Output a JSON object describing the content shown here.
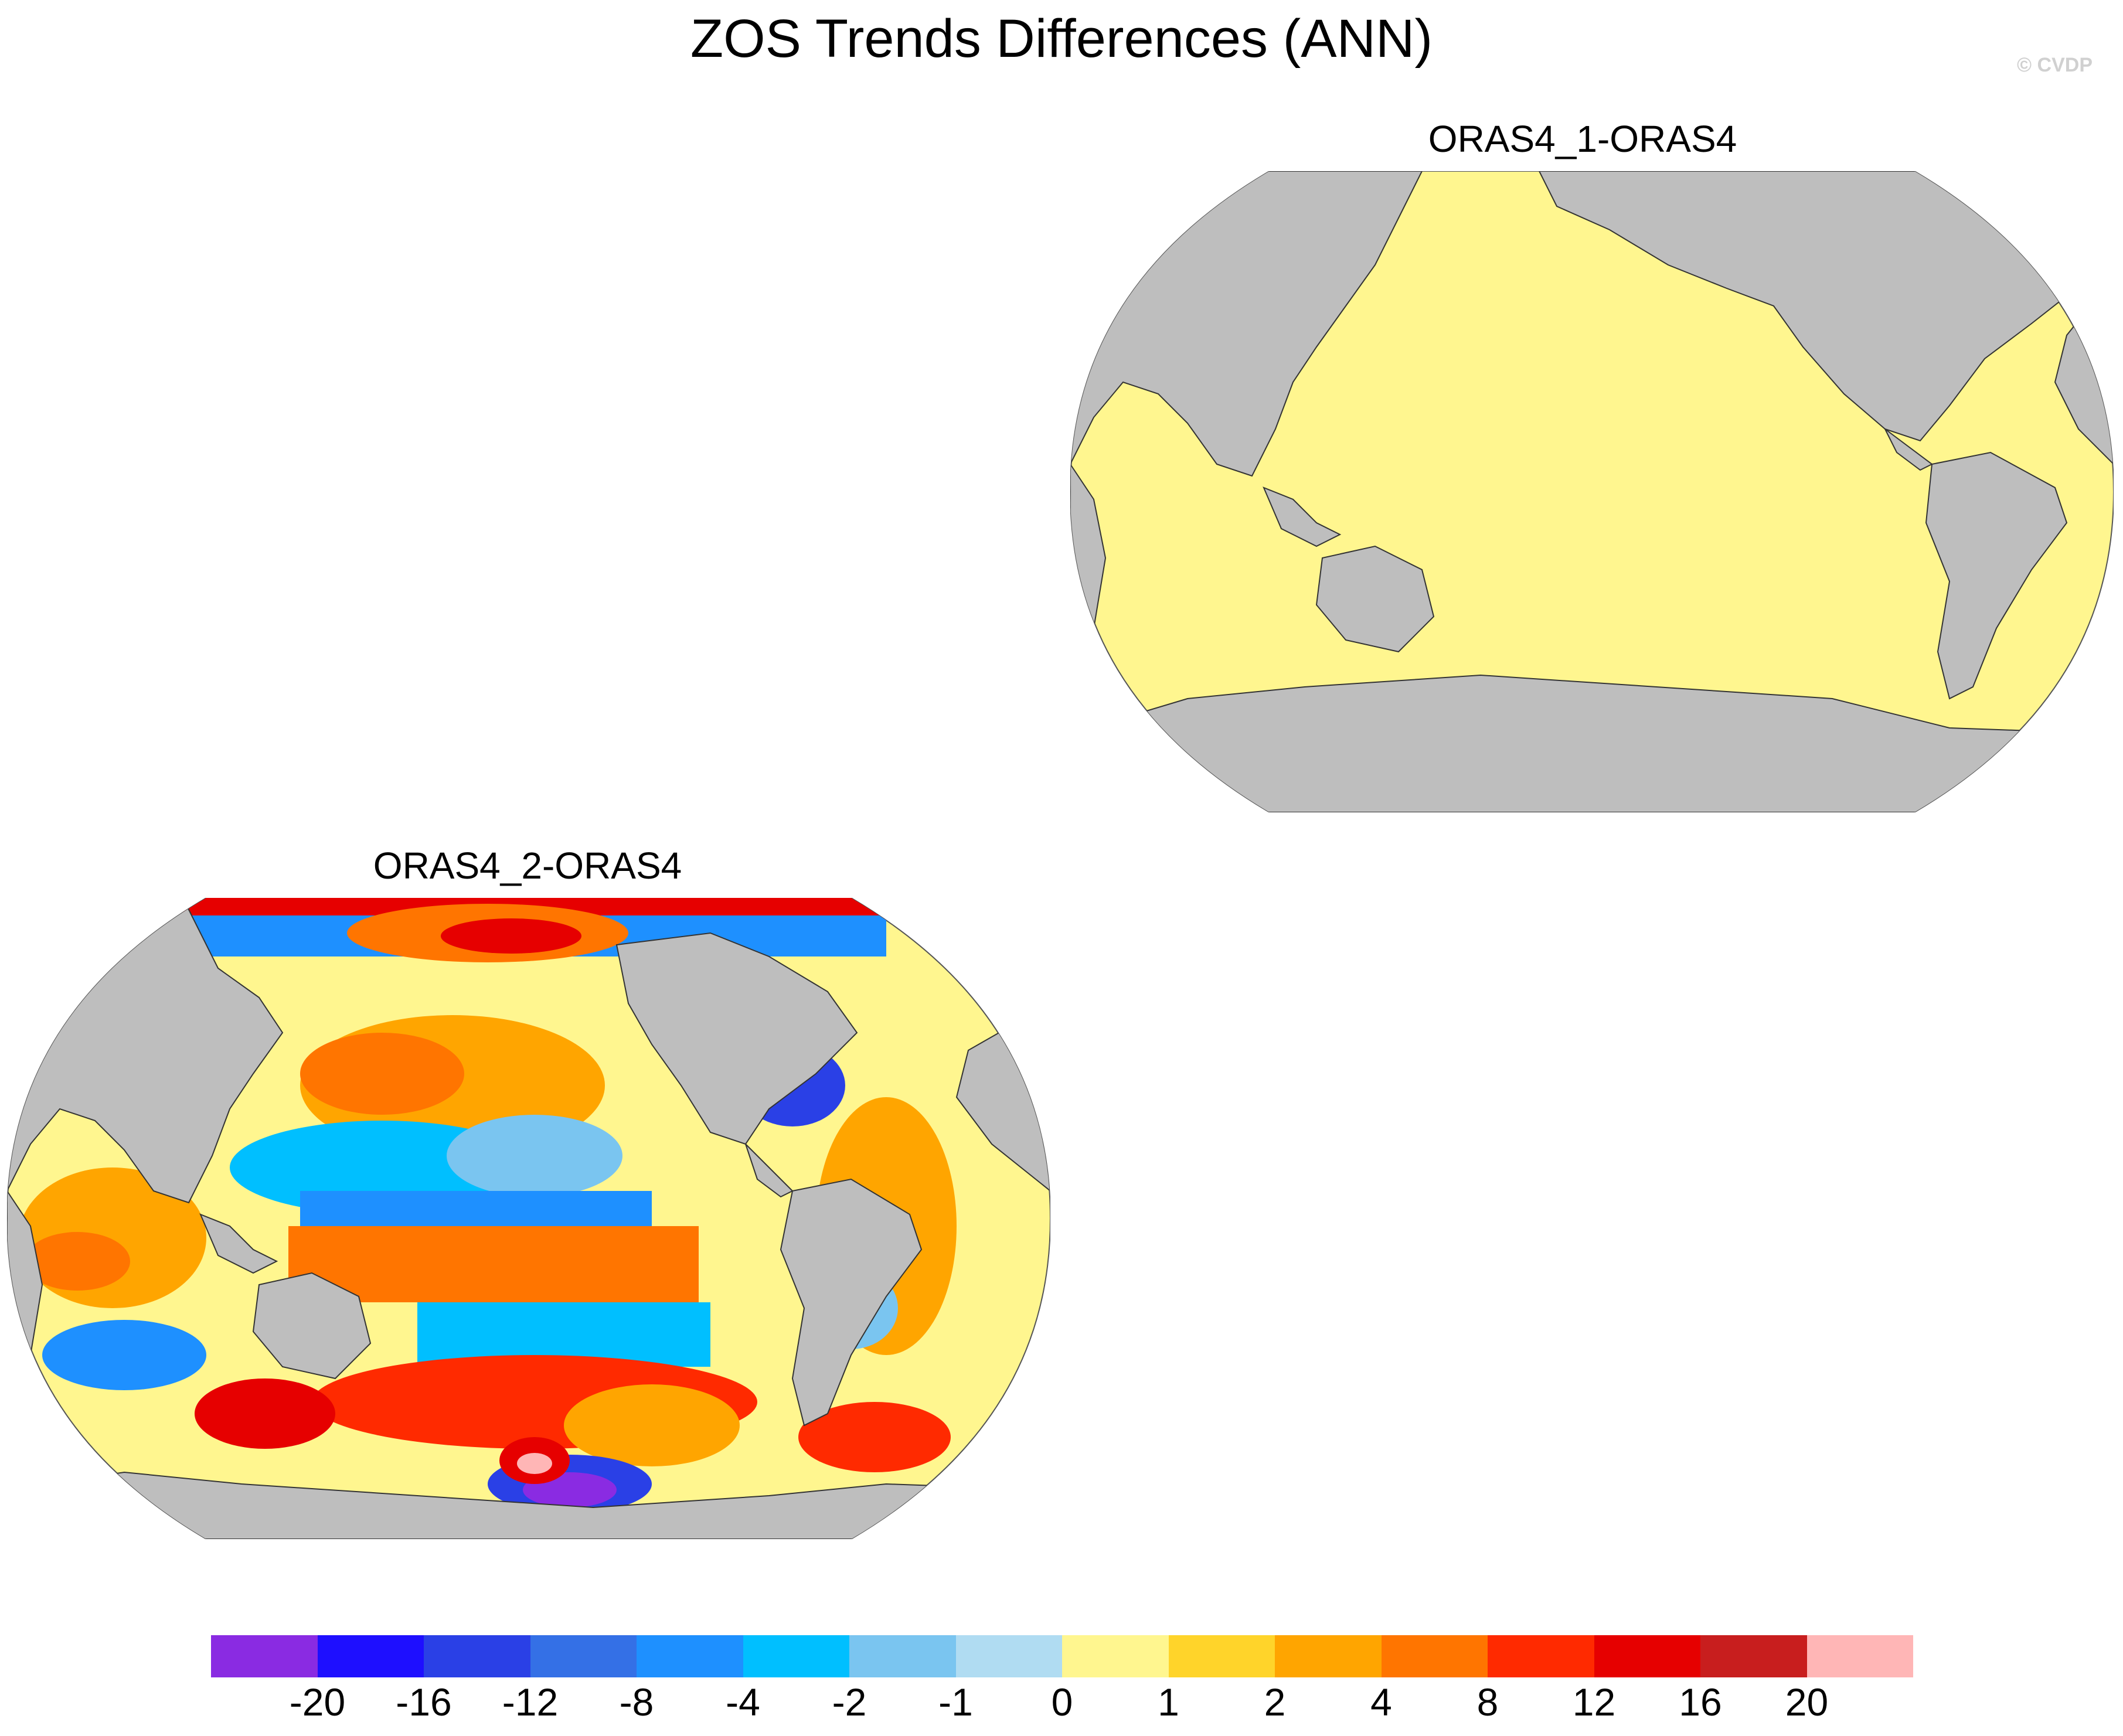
{
  "title": "ZOS Trends Differences (ANN)",
  "copyright": "© CVDP",
  "panels": [
    {
      "title": "ORAS4_1-ORAS4",
      "ocean_color": "#fff68f",
      "description_values": "uniform 0 to 1"
    },
    {
      "title": "ORAS4_2-ORAS4"
    }
  ],
  "colors": {
    "land": "#bebebe",
    "coast": "#333333"
  },
  "colorbar": {
    "colors": [
      "#8a2be2",
      "#1e0fff",
      "#2a40e6",
      "#3470e6",
      "#1e90ff",
      "#00bfff",
      "#7ac5f0",
      "#b0dcf2",
      "#fff68f",
      "#ffd42a",
      "#ffa500",
      "#ff7500",
      "#ff2a00",
      "#e60000",
      "#c81e1e",
      "#ffb6b6"
    ],
    "labels": [
      "-20",
      "-16",
      "-12",
      "-8",
      "-4",
      "-2",
      "-1",
      "0",
      "1",
      "2",
      "4",
      "8",
      "12",
      "16",
      "20"
    ]
  }
}
